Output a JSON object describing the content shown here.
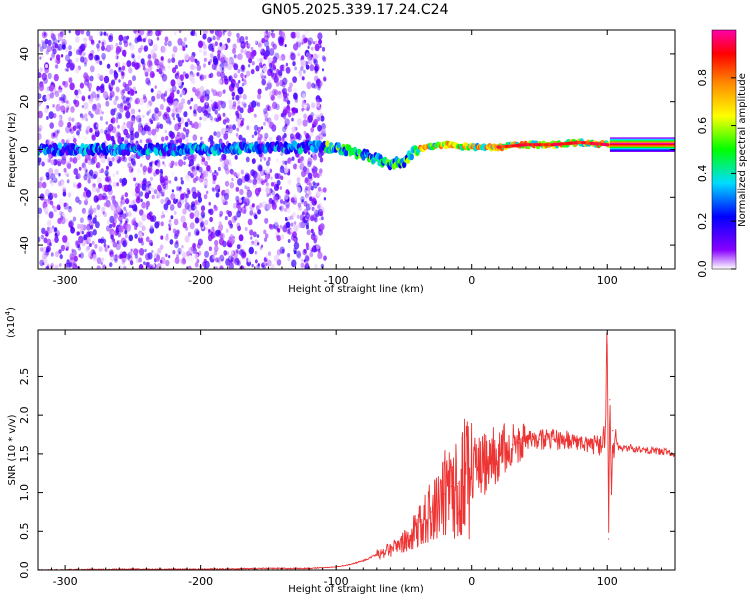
{
  "title": "GN05.2025.339.17.24.C24",
  "chart_data": [
    {
      "type": "heatmap",
      "name": "spectrogram",
      "xlabel": "Height of straight line (km)",
      "ylabel": "Frequency (Hz)",
      "xlim": [
        -320,
        150
      ],
      "ylim": [
        -50,
        50
      ],
      "xticks": [
        -300,
        -200,
        -100,
        0,
        100
      ],
      "xtick_labels": [
        "-300",
        "-200",
        "-100",
        "0",
        "100"
      ],
      "yticks": [
        -40,
        -20,
        0,
        20,
        40
      ],
      "ytick_labels": [
        "-40",
        "-20",
        "0",
        "20",
        "40"
      ],
      "noise_region_x": [
        -320,
        -112
      ],
      "signal_track": [
        {
          "x": -320,
          "y": 0
        },
        {
          "x": -200,
          "y": 0
        },
        {
          "x": -120,
          "y": 1
        },
        {
          "x": -100,
          "y": 1
        },
        {
          "x": -90,
          "y": -1
        },
        {
          "x": -80,
          "y": -2
        },
        {
          "x": -70,
          "y": -4
        },
        {
          "x": -60,
          "y": -6
        },
        {
          "x": -50,
          "y": -5
        },
        {
          "x": -45,
          "y": -2
        },
        {
          "x": -40,
          "y": 0
        },
        {
          "x": -20,
          "y": 2
        },
        {
          "x": 0,
          "y": 1
        },
        {
          "x": 20,
          "y": 1
        },
        {
          "x": 40,
          "y": 2
        },
        {
          "x": 60,
          "y": 2
        },
        {
          "x": 80,
          "y": 3
        },
        {
          "x": 100,
          "y": 2
        },
        {
          "x": 150,
          "y": 2
        }
      ],
      "colorbar": {
        "label": "Normalized spectral amplitude",
        "range": [
          0,
          1
        ],
        "ticks": [
          0.0,
          0.2,
          0.4,
          0.6,
          0.8
        ],
        "tick_labels": [
          "0.0",
          "0.2",
          "0.4",
          "0.6",
          "0.8"
        ],
        "colors": [
          "#ffffff",
          "#8800ff",
          "#0000ff",
          "#00ddff",
          "#00ff00",
          "#ffff00",
          "#ff8800",
          "#ff0000",
          "#ff00aa"
        ]
      }
    },
    {
      "type": "line",
      "name": "snr",
      "xlabel": "Height of straight line (km)",
      "ylabel": "SNR (10 * v/v)",
      "multiplier_label": "(x10",
      "multiplier_exp": "4",
      "multiplier_close": ")",
      "xlim": [
        -320,
        150
      ],
      "ylim": [
        0,
        3.1
      ],
      "xticks": [
        -300,
        -200,
        -100,
        0,
        100
      ],
      "xtick_labels": [
        "-300",
        "-200",
        "-100",
        "0",
        "100"
      ],
      "yticks": [
        0.0,
        0.5,
        1.0,
        1.5,
        2.0,
        2.5
      ],
      "ytick_labels": [
        "0.0",
        "0.5",
        "1.0",
        "1.5",
        "2.0",
        "2.5"
      ],
      "color": "#ee3333",
      "series": [
        {
          "name": "SNR",
          "x": [
            -320,
            -250,
            -200,
            -150,
            -120,
            -100,
            -90,
            -80,
            -70,
            -60,
            -50,
            -45,
            -40,
            -35,
            -30,
            -25,
            -20,
            -15,
            -10,
            -5,
            0,
            5,
            10,
            15,
            20,
            25,
            30,
            35,
            40,
            45,
            50,
            55,
            60,
            65,
            70,
            75,
            80,
            85,
            90,
            95,
            98,
            100,
            101,
            102,
            103,
            104,
            105,
            110,
            120,
            130,
            140,
            150
          ],
          "y": [
            0.0,
            0.01,
            0.01,
            0.02,
            0.02,
            0.04,
            0.07,
            0.12,
            0.2,
            0.28,
            0.35,
            0.45,
            0.55,
            0.65,
            0.75,
            0.88,
            0.98,
            1.08,
            1.12,
            1.18,
            1.25,
            1.32,
            1.38,
            1.45,
            1.52,
            1.58,
            1.62,
            1.64,
            1.67,
            1.68,
            1.69,
            1.68,
            1.69,
            1.68,
            1.67,
            1.66,
            1.64,
            1.63,
            1.62,
            1.6,
            1.7,
            2.9,
            0.4,
            2.2,
            1.0,
            1.8,
            1.6,
            1.58,
            1.57,
            1.55,
            1.53,
            1.51
          ]
        }
      ]
    }
  ]
}
